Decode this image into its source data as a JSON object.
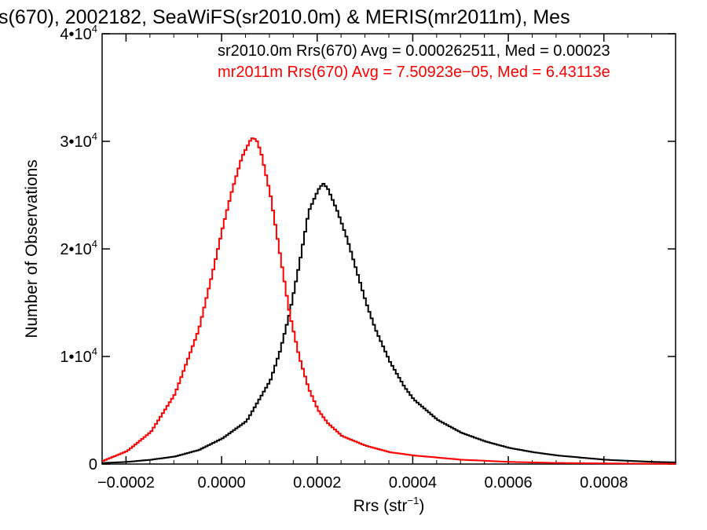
{
  "chart_data": {
    "type": "line",
    "title": "s(670), 2002182, SeaWiFS(sr2010.0m) & MERIS(mr2011m), Mes",
    "xlabel": "Rrs (str",
    "xlabel_sup": "−1",
    "xlabel_close": ")",
    "ylabel": "Number of Observations",
    "xlim": [
      -0.00025,
      0.00095
    ],
    "ylim": [
      0,
      40000
    ],
    "x_ticks": [
      {
        "value": -0.0002,
        "label": "−0.0002"
      },
      {
        "value": 0.0,
        "label": "0.0000"
      },
      {
        "value": 0.0002,
        "label": "0.0002"
      },
      {
        "value": 0.0004,
        "label": "0.0004"
      },
      {
        "value": 0.0006,
        "label": "0.0006"
      },
      {
        "value": 0.0008,
        "label": "0.0008"
      }
    ],
    "y_ticks": [
      {
        "value": 0,
        "mant": "0",
        "exp": ""
      },
      {
        "value": 10000,
        "mant": "1•10",
        "exp": "4"
      },
      {
        "value": 20000,
        "mant": "2•10",
        "exp": "4"
      },
      {
        "value": 30000,
        "mant": "3•10",
        "exp": "4"
      },
      {
        "value": 40000,
        "mant": "4•10",
        "exp": "4"
      }
    ],
    "grid": false,
    "legend_position": "top-right",
    "series": [
      {
        "name": "sr2010.0m Rrs(670) Avg = 0.000262511, Med = 0.00023",
        "color": "#000000",
        "points": [
          [
            -0.00025,
            100
          ],
          [
            -0.0002,
            200
          ],
          [
            -0.00015,
            400
          ],
          [
            -0.0001,
            700
          ],
          [
            -5e-05,
            1300
          ],
          [
            0.0,
            2400
          ],
          [
            5e-05,
            4000
          ],
          [
            0.0001,
            7800
          ],
          [
            0.00012,
            10500
          ],
          [
            0.00014,
            14000
          ],
          [
            0.00016,
            18500
          ],
          [
            0.00018,
            23500
          ],
          [
            0.0002,
            25500
          ],
          [
            0.00021,
            26100
          ],
          [
            0.00022,
            25600
          ],
          [
            0.00024,
            23500
          ],
          [
            0.00026,
            21000
          ],
          [
            0.00028,
            18000
          ],
          [
            0.0003,
            15000
          ],
          [
            0.00032,
            12500
          ],
          [
            0.00035,
            9500
          ],
          [
            0.00038,
            7200
          ],
          [
            0.0004,
            6000
          ],
          [
            0.00045,
            4100
          ],
          [
            0.0005,
            2900
          ],
          [
            0.00055,
            2100
          ],
          [
            0.0006,
            1500
          ],
          [
            0.00065,
            1100
          ],
          [
            0.0007,
            800
          ],
          [
            0.00075,
            600
          ],
          [
            0.0008,
            400
          ],
          [
            0.00085,
            300
          ],
          [
            0.0009,
            200
          ],
          [
            0.00095,
            150
          ]
        ]
      },
      {
        "name": "mr2011m Rrs(670) Avg = 7.50923e−05, Med = 6.43113e",
        "color": "#ff0000",
        "points": [
          [
            -0.00025,
            300
          ],
          [
            -0.0002,
            1200
          ],
          [
            -0.00015,
            3000
          ],
          [
            -0.0001,
            6500
          ],
          [
            -5e-05,
            12500
          ],
          [
            -2e-05,
            18000
          ],
          [
            0.0,
            22000
          ],
          [
            2e-05,
            25500
          ],
          [
            4e-05,
            28500
          ],
          [
            6e-05,
            30300
          ],
          [
            7e-05,
            30200
          ],
          [
            8e-05,
            29000
          ],
          [
            0.0001,
            25000
          ],
          [
            0.00012,
            19500
          ],
          [
            0.00014,
            14000
          ],
          [
            0.00016,
            10000
          ],
          [
            0.00018,
            7000
          ],
          [
            0.0002,
            5000
          ],
          [
            0.00022,
            3800
          ],
          [
            0.00025,
            2600
          ],
          [
            0.0003,
            1700
          ],
          [
            0.00035,
            1100
          ],
          [
            0.0004,
            800
          ],
          [
            0.0005,
            400
          ],
          [
            0.0006,
            200
          ],
          [
            0.0007,
            100
          ],
          [
            0.0008,
            60
          ],
          [
            0.0009,
            30
          ],
          [
            0.00095,
            20
          ]
        ]
      }
    ]
  }
}
